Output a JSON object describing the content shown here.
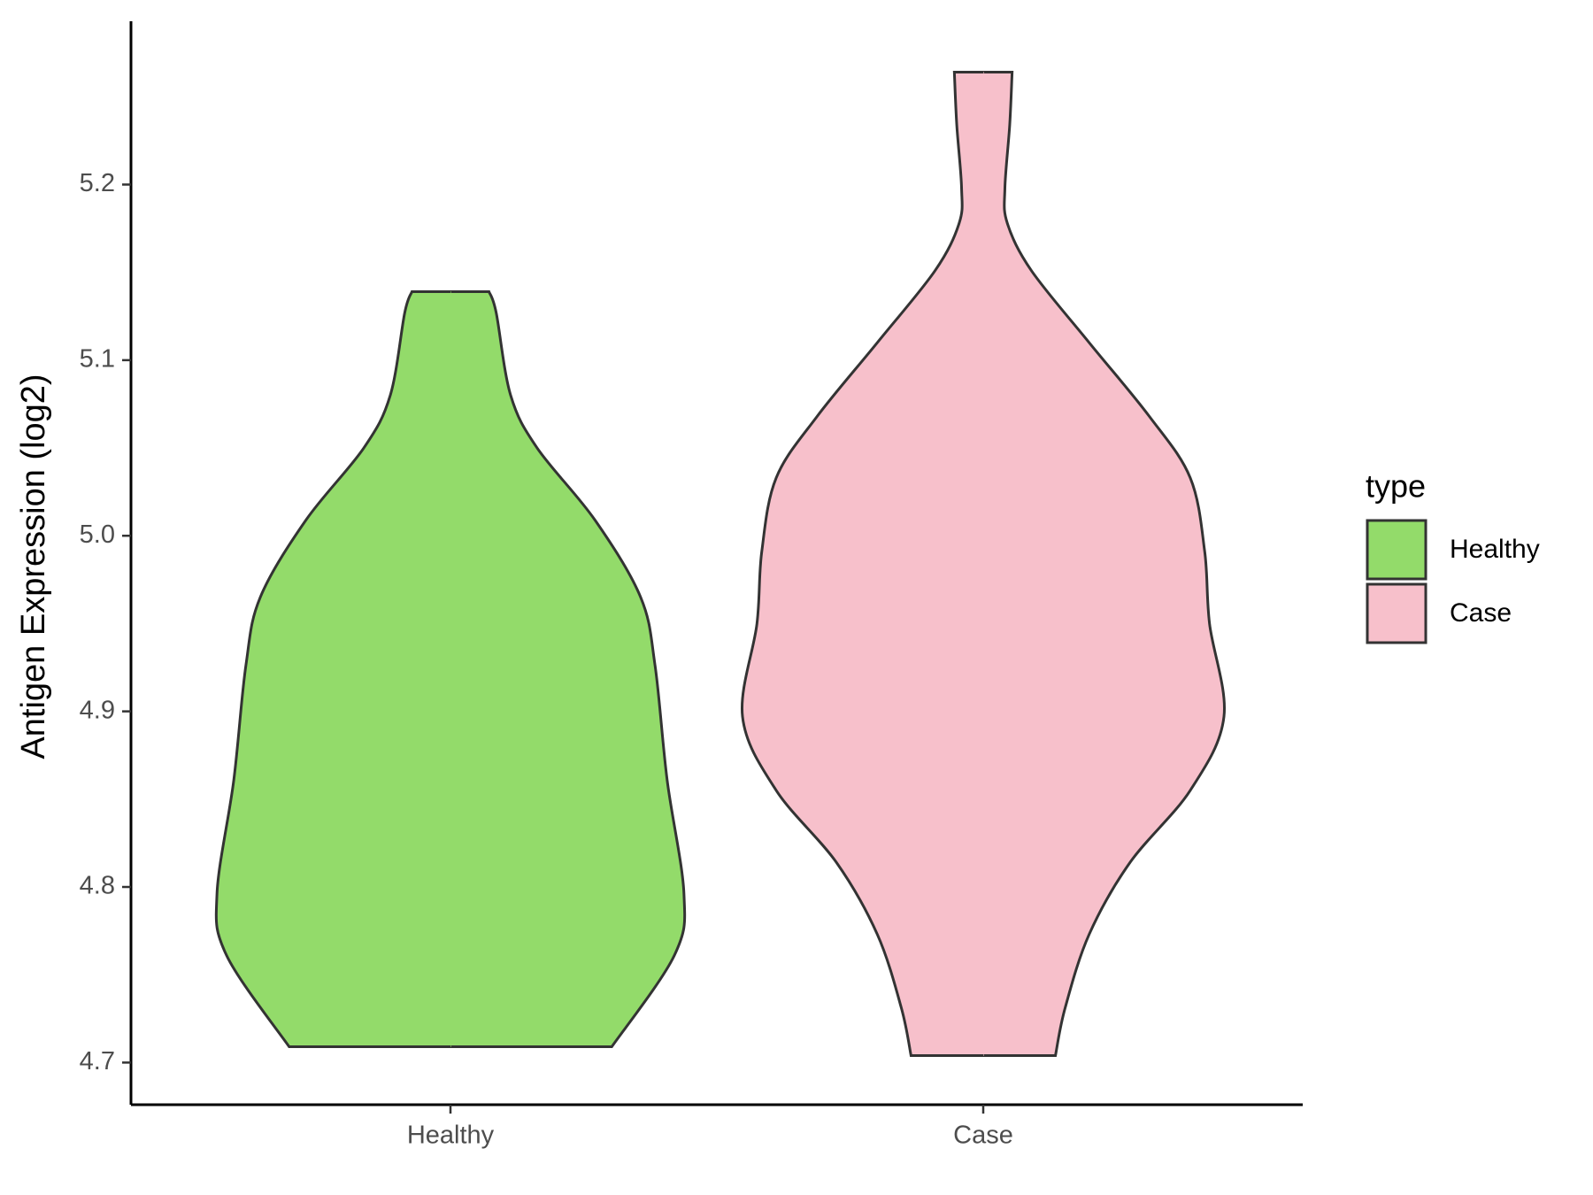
{
  "chart_data": {
    "type": "violin",
    "y_label": "Antigen Expression (log2)",
    "categories": [
      "Healthy",
      "Case"
    ],
    "legend_title": "type",
    "legend_position": "right",
    "ylim": [
      4.676,
      5.293
    ],
    "yticks": [
      {
        "value": 4.7,
        "label": "4.7"
      },
      {
        "value": 4.8,
        "label": "4.8"
      },
      {
        "value": 4.9,
        "label": "4.9"
      },
      {
        "value": 5.0,
        "label": "5.0"
      },
      {
        "value": 5.1,
        "label": "5.1"
      },
      {
        "value": 5.2,
        "label": "5.2"
      }
    ],
    "series": [
      {
        "name": "Healthy",
        "color": "#93db6a",
        "y": [
          5.139,
          5.127,
          5.08,
          5.05,
          5.009,
          4.965,
          4.926,
          4.861,
          4.796,
          4.761,
          4.709
        ],
        "density": [
          0.16,
          0.19,
          0.25,
          0.36,
          0.6,
          0.79,
          0.85,
          0.9,
          0.97,
          0.93,
          0.67
        ]
      },
      {
        "name": "Case",
        "color": "#f7c0cb",
        "y": [
          5.264,
          5.234,
          5.198,
          5.178,
          5.151,
          5.11,
          5.068,
          5.033,
          4.991,
          4.95,
          4.897,
          4.855,
          4.814,
          4.773,
          4.731,
          4.704
        ],
        "density": [
          0.12,
          0.11,
          0.09,
          0.1,
          0.2,
          0.44,
          0.69,
          0.86,
          0.92,
          0.94,
          1.0,
          0.86,
          0.61,
          0.44,
          0.34,
          0.3
        ]
      }
    ]
  }
}
